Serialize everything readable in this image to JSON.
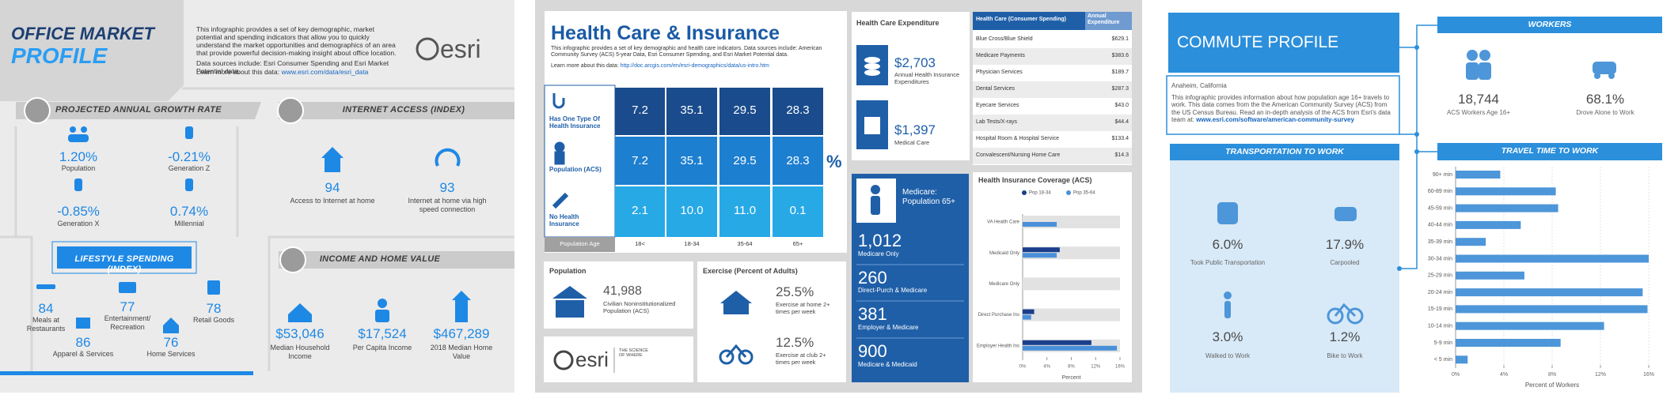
{
  "office": {
    "title_line1": "OFFICE MARKET",
    "title_line2": "PROFILE",
    "description": "This infographic provides a set of key demographic, market potential and spending indicators that allow you to quickly understand the market opportunities and demographics of an area that provide powerful decision-making insight about office location.",
    "sources": "Data sources include: Esri Consumer Spending and Esri Market Potential data.",
    "learn_more": "Learn more about this data:",
    "link": "www.esri.com/data/esri_data",
    "logo": "esri",
    "growth": {
      "title": "PROJECTED ANNUAL GROWTH RATE",
      "items": [
        {
          "value": "1.20%",
          "label": "Population"
        },
        {
          "value": "-0.21%",
          "label": "Generation Z"
        },
        {
          "value": "-0.85%",
          "label": "Generation X"
        },
        {
          "value": "0.74%",
          "label": "Millennial"
        }
      ]
    },
    "internet": {
      "title": "INTERNET ACCESS (INDEX)",
      "items": [
        {
          "value": "94",
          "label": "Access to Internet at home"
        },
        {
          "value": "93",
          "label": "Internet at home via high speed connection"
        }
      ]
    },
    "lifestyle": {
      "title": "LIFESTYLE SPENDING (INDEX)",
      "items": [
        {
          "value": "84",
          "label": "Meals at Restaurants"
        },
        {
          "value": "77",
          "label": "Entertainment/ Recreation"
        },
        {
          "value": "78",
          "label": "Retail Goods"
        },
        {
          "value": "86",
          "label": "Apparel & Services"
        },
        {
          "value": "76",
          "label": "Home Services"
        }
      ]
    },
    "income": {
      "title": "INCOME AND HOME VALUE",
      "items": [
        {
          "value": "$53,046",
          "label": "Median Household Income"
        },
        {
          "value": "$17,524",
          "label": "Per Capita Income"
        },
        {
          "value": "$467,289",
          "label": "2018 Median Home Value"
        }
      ]
    }
  },
  "health": {
    "title": "Health Care & Insurance",
    "description": "This infographic provides a set of key demographic and health care indicators. Data sources include: American Community Survey (ACS) 5-year Data, Esri Consumer Spending, and Esri Market Potential data.",
    "learn_more": "Learn more about this data:",
    "link": "http://doc.arcgis.com/en/esri-demographics/data/us-intro.htm",
    "insurance_matrix": {
      "rows": [
        {
          "label": "Has One Type Of Health Insurance",
          "values": [
            "7.2",
            "35.1",
            "29.5",
            "28.3"
          ]
        },
        {
          "label": "Population (ACS)",
          "values": [
            "7.2",
            "35.1",
            "29.5",
            "28.3"
          ]
        },
        {
          "label": "No Health Insurance",
          "values": [
            "2.1",
            "10.0",
            "11.0",
            "0.1"
          ]
        }
      ],
      "column_header": "Population Age",
      "columns": [
        "18<",
        "18-34",
        "35-64",
        "65+"
      ],
      "unit": "%"
    },
    "expenditure": {
      "title": "Health Care Expenditure",
      "items": [
        {
          "value": "$2,703",
          "label": "Annual Health Insurance Expenditures"
        },
        {
          "value": "$1,397",
          "label": "Medical Care"
        }
      ]
    },
    "spending_table": {
      "headers": [
        "Health Care (Consumer Spending)",
        "Annual Expenditure"
      ],
      "rows": [
        [
          "Blue Cross/Blue Shield",
          "$629.1"
        ],
        [
          "Medicare Payments",
          "$383.6"
        ],
        [
          "Physician Services",
          "$189.7"
        ],
        [
          "Dental Services",
          "$287.3"
        ],
        [
          "Eyecare Services",
          "$43.0"
        ],
        [
          "Lab Tests/X-rays",
          "$44.4"
        ],
        [
          "Hospital Room & Hospital Service",
          "$133.4"
        ],
        [
          "Convalescent/Nursing Home Care",
          "$14.3"
        ]
      ]
    },
    "medicare": {
      "title": "Medicare: Population 65+",
      "items": [
        {
          "value": "1,012",
          "label": "Medicare Only"
        },
        {
          "value": "260",
          "label": "Direct-Purch & Medicare"
        },
        {
          "value": "381",
          "label": "Employer & Medicare"
        },
        {
          "value": "900",
          "label": "Medicare & Medicaid"
        }
      ]
    },
    "population": {
      "title": "Population",
      "value": "41,988",
      "label": "Civilian Noninstitutionalized Population (ACS)"
    },
    "exercise": {
      "title": "Exercise (Percent of Adults)",
      "items": [
        {
          "value": "25.5%",
          "label": "Exercise at home 2+ times per week"
        },
        {
          "value": "12.5%",
          "label": "Exercise at club 2+ times per week"
        }
      ]
    },
    "logo": {
      "name": "esri",
      "tagline": "THE SCIENCE OF WHERE"
    },
    "coverage": {
      "type": "bar",
      "title": "Health Insurance Coverage (ACS)",
      "categories": [
        "VA Health Care",
        "Medicaid Only",
        "Medicare Only",
        "Direct Purchase Ins",
        "Employer Health Ins"
      ],
      "series": [
        {
          "name": "Pop 18-34",
          "color": "#1b3f8b",
          "values": [
            0,
            6.1,
            0,
            1.9,
            11.3
          ]
        },
        {
          "name": "Pop 35-64",
          "color": "#4a90d9",
          "values": [
            5.6,
            5.6,
            0,
            1.4,
            15.5
          ]
        }
      ],
      "xlim": [
        0,
        16
      ],
      "xticks": [
        {
          "value": 0,
          "label": "0%"
        },
        {
          "value": 4,
          "label": "4%"
        },
        {
          "value": 8,
          "label": "8%"
        },
        {
          "value": 12,
          "label": "12%"
        },
        {
          "value": 16,
          "label": "16%"
        }
      ],
      "xlabel": "Percent"
    }
  },
  "commute": {
    "title": "COMMUTE PROFILE",
    "location": "Anaheim, California",
    "description": "This infographic provides information about how population age 16+ travels to work. This data comes from the the American Community Survey (ACS) from the US Census Bureau. Read an in-depth analysis of the ACS from Esri's data team at:",
    "link": "www.esri.com/software/american-community-survey",
    "workers": {
      "title": "WORKERS",
      "items": [
        {
          "value": "18,744",
          "label": "ACS Workers Age 16+"
        },
        {
          "value": "68.1%",
          "label": "Drove Alone to Work"
        }
      ]
    },
    "transportation": {
      "title": "TRANSPORTATION TO WORK",
      "items": [
        {
          "value": "6.0%",
          "label": "Took Public Transportation"
        },
        {
          "value": "17.9%",
          "label": "Carpooled"
        },
        {
          "value": "3.0%",
          "label": "Walked to Work"
        },
        {
          "value": "1.2%",
          "label": "Bike to Work"
        }
      ]
    },
    "travel_time": {
      "type": "bar",
      "title": "TRAVEL TIME TO WORK",
      "categories": [
        "90+ min",
        "60-89 min",
        "45-59 min",
        "40-44 min",
        "35-39 min",
        "30-34 min",
        "25-29 min",
        "20-24 min",
        "15-19 min",
        "10-14 min",
        "5-9 min",
        "< 5 min"
      ],
      "values": [
        3.7,
        8.3,
        8.5,
        5.4,
        2.5,
        16.0,
        5.7,
        15.5,
        15.9,
        12.3,
        8.7,
        1.0
      ],
      "color": "#4d96d9",
      "xlim": [
        0,
        16
      ],
      "xticks": [
        {
          "value": 0,
          "label": "0%"
        },
        {
          "value": 4,
          "label": "4%"
        },
        {
          "value": 8,
          "label": "8%"
        },
        {
          "value": 12,
          "label": "12%"
        },
        {
          "value": 16,
          "label": "16%"
        }
      ],
      "xlabel": "Percent of Workers"
    }
  }
}
